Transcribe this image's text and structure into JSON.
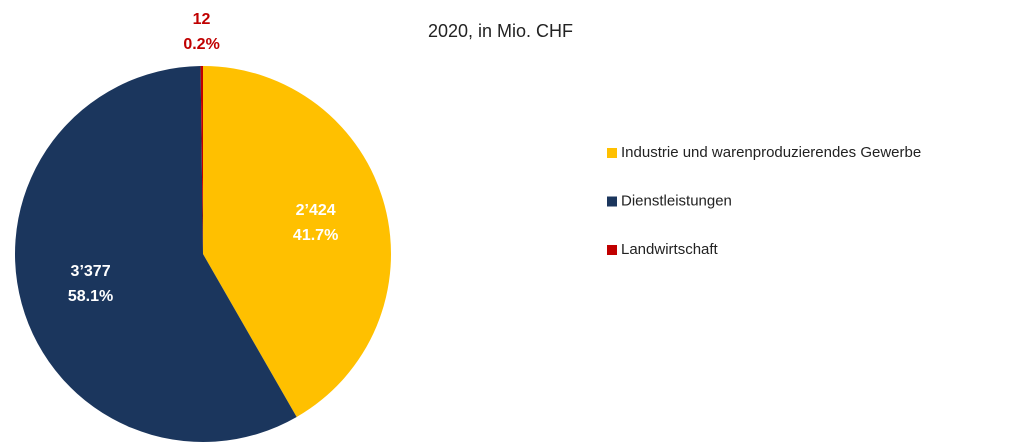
{
  "chart_data": {
    "type": "pie",
    "title": "2020, in Mio. CHF",
    "categories": [
      "Industrie und warenproduzierendes Gewerbe",
      "Dienstleistungen",
      "Landwirtschaft"
    ],
    "values": [
      2424,
      3377,
      12
    ],
    "value_labels": [
      "2’424",
      "3’377",
      "12"
    ],
    "shares": [
      41.7,
      58.1,
      0.2
    ],
    "share_labels": [
      "41.7%",
      "58.1%",
      "0.2%"
    ],
    "colors": [
      "#FFC000",
      "#1B365D",
      "#C00000"
    ],
    "legend": "right"
  }
}
